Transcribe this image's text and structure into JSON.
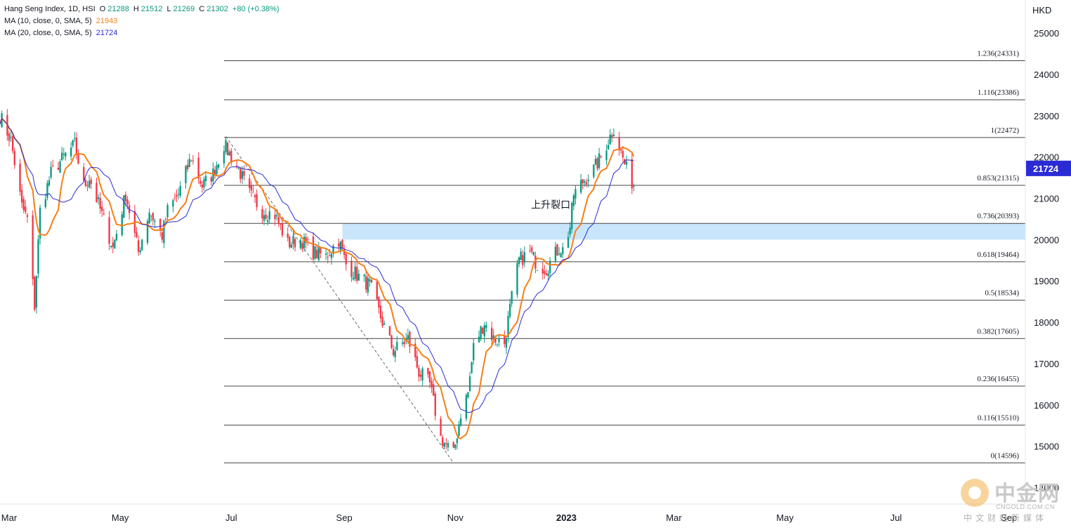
{
  "legend": {
    "title": "Hang Seng Index, 1D, HSI",
    "ohlc": {
      "o_label": "O",
      "o": "21288",
      "h_label": "H",
      "h": "21512",
      "l_label": "L",
      "l": "21269",
      "c_label": "C",
      "c": "21302",
      "chg": "+80 (+0.38%)"
    },
    "ma10": {
      "label": "MA (10, close, 0, SMA, 5)",
      "value": "21943",
      "color": "#f57f17"
    },
    "ma20": {
      "label": "MA (20, close, 0, SMA, 5)",
      "value": "21724",
      "color": "#2b2bd6"
    }
  },
  "currency": "HKD",
  "watermark": {
    "cn": "中金网",
    "url": "CNGOLD.COM.CN",
    "sub": "中文财经新媒体"
  },
  "colors": {
    "up": "#089981",
    "down": "#f23645",
    "ma10": "#f57f17",
    "ma20": "#2b2bd6",
    "gap": "#bbdefb",
    "fib": "#444444",
    "last_badge": "#2b2bd6"
  },
  "chart_data": {
    "type": "candlestick",
    "title": "Hang Seng Index, 1D, HSI",
    "ylabel": "HKD",
    "ylim": [
      13600,
      25800
    ],
    "xlim": [
      "2022-02-24",
      "2023-09-10"
    ],
    "y_ticks": [
      14000,
      15000,
      16000,
      17000,
      18000,
      19000,
      20000,
      21000,
      22000,
      23000,
      24000,
      25000
    ],
    "x_ticks": [
      {
        "date": "2022-03-01",
        "label": "Mar",
        "bold": false
      },
      {
        "date": "2022-05-01",
        "label": "May",
        "bold": false
      },
      {
        "date": "2022-07-01",
        "label": "Jul",
        "bold": false
      },
      {
        "date": "2022-09-01",
        "label": "Sep",
        "bold": false
      },
      {
        "date": "2022-11-01",
        "label": "Nov",
        "bold": false
      },
      {
        "date": "2023-01-01",
        "label": "2023",
        "bold": true
      },
      {
        "date": "2023-03-01",
        "label": "Mar",
        "bold": false
      },
      {
        "date": "2023-05-01",
        "label": "May",
        "bold": false
      },
      {
        "date": "2023-07-01",
        "label": "Jul",
        "bold": false
      },
      {
        "date": "2023-09-01",
        "label": "Sep",
        "bold": false
      }
    ],
    "last_value": {
      "label": "21724",
      "value": 21724
    },
    "fib_start_date": "2022-06-27",
    "fib_levels": [
      {
        "label": "1.236(24331)",
        "value": 24331
      },
      {
        "label": "1.116(23386)",
        "value": 23386
      },
      {
        "label": "1(22472)",
        "value": 22472
      },
      {
        "label": "0.853(21315)",
        "value": 21315
      },
      {
        "label": "0.736(20393)",
        "value": 20393
      },
      {
        "label": "0.618(19464)",
        "value": 19464
      },
      {
        "label": "0.5(18534)",
        "value": 18534
      },
      {
        "label": "0.382(17605)",
        "value": 17605
      },
      {
        "label": "0.236(16455)",
        "value": 16455
      },
      {
        "label": "0.116(15510)",
        "value": 15510
      },
      {
        "label": "0(14596)",
        "value": 14596
      }
    ],
    "gap_zone": {
      "from_date": "2022-08-31",
      "to_date": "2023-09-10",
      "low": 20000,
      "high": 20393
    },
    "trend_line": {
      "from": {
        "date": "2022-06-28",
        "value": 22500
      },
      "to": {
        "date": "2022-10-31",
        "value": 14596
      }
    },
    "annotation": {
      "text": "上升裂口",
      "date": "2022-12-28",
      "value": 20850
    },
    "anchors": [
      [
        "2022-02-24",
        23000
      ],
      [
        "2022-03-02",
        22400
      ],
      [
        "2022-03-08",
        20800
      ],
      [
        "2022-03-11",
        20500
      ],
      [
        "2022-03-15",
        18400
      ],
      [
        "2022-03-18",
        20700
      ],
      [
        "2022-03-24",
        21600
      ],
      [
        "2022-03-31",
        22000
      ],
      [
        "2022-04-06",
        22300
      ],
      [
        "2022-04-11",
        21300
      ],
      [
        "2022-04-14",
        21500
      ],
      [
        "2022-04-21",
        20600
      ],
      [
        "2022-04-27",
        19800
      ],
      [
        "2022-05-04",
        21100
      ],
      [
        "2022-05-11",
        19700
      ],
      [
        "2022-05-17",
        20700
      ],
      [
        "2022-05-24",
        20100
      ],
      [
        "2022-05-27",
        20700
      ],
      [
        "2022-06-02",
        21100
      ],
      [
        "2022-06-09",
        22000
      ],
      [
        "2022-06-15",
        21300
      ],
      [
        "2022-06-21",
        21600
      ],
      [
        "2022-06-27",
        22300
      ],
      [
        "2022-07-05",
        21700
      ],
      [
        "2022-07-11",
        21100
      ],
      [
        "2022-07-18",
        20700
      ],
      [
        "2022-07-25",
        20600
      ],
      [
        "2022-08-01",
        19900
      ],
      [
        "2022-08-08",
        20000
      ],
      [
        "2022-08-15",
        19700
      ],
      [
        "2022-08-22",
        19600
      ],
      [
        "2022-08-29",
        20000
      ],
      [
        "2022-09-02",
        19400
      ],
      [
        "2022-09-09",
        19100
      ],
      [
        "2022-09-15",
        18900
      ],
      [
        "2022-09-22",
        18000
      ],
      [
        "2022-09-28",
        17300
      ],
      [
        "2022-10-06",
        17600
      ],
      [
        "2022-10-12",
        16800
      ],
      [
        "2022-10-18",
        16500
      ],
      [
        "2022-10-24",
        15200
      ],
      [
        "2022-10-31",
        14800
      ],
      [
        "2022-11-04",
        15800
      ],
      [
        "2022-11-08",
        16300
      ],
      [
        "2022-11-11",
        17400
      ],
      [
        "2022-11-17",
        18000
      ],
      [
        "2022-11-22",
        17600
      ],
      [
        "2022-11-28",
        17500
      ],
      [
        "2022-12-02",
        18600
      ],
      [
        "2022-12-06",
        19500
      ],
      [
        "2022-12-12",
        19700
      ],
      [
        "2022-12-16",
        19400
      ],
      [
        "2022-12-21",
        19300
      ],
      [
        "2022-12-28",
        19800
      ],
      [
        "2022-12-30",
        19750
      ],
      [
        "2023-01-03",
        20300
      ],
      [
        "2023-01-05",
        21100
      ],
      [
        "2023-01-10",
        21400
      ],
      [
        "2023-01-16",
        21700
      ],
      [
        "2023-01-20",
        22000
      ],
      [
        "2023-01-27",
        22700
      ],
      [
        "2023-01-31",
        22100
      ],
      [
        "2023-02-03",
        21700
      ],
      [
        "2023-02-07",
        21300
      ]
    ]
  }
}
